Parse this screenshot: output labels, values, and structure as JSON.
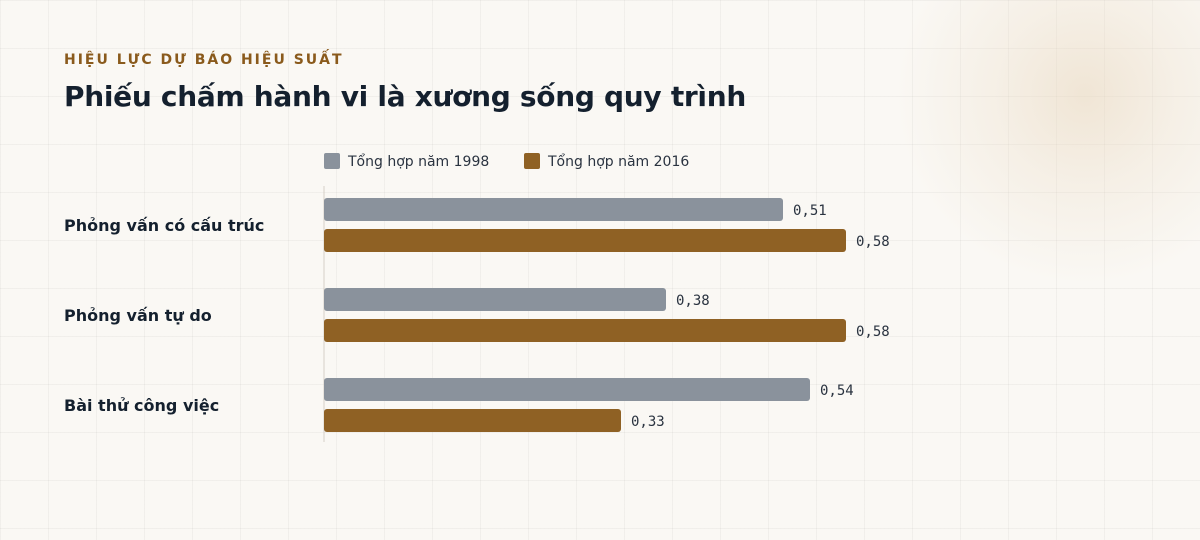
{
  "eyebrow": "HIỆU LỰC DỰ BÁO HIỆU SUẤT",
  "title": "Phiếu chấm hành vi là xương sống quy trình",
  "chart_data": {
    "type": "bar",
    "orientation": "horizontal",
    "title": "Phiếu chấm hành vi là xương sống quy trình",
    "subtitle": "HIỆU LỰC DỰ BÁO HIỆU SUẤT",
    "categories": [
      "Phỏng vấn có cấu trúc",
      "Phỏng vấn tự do",
      "Bài thử công việc"
    ],
    "series": [
      {
        "name": "Tổng hợp năm 1998",
        "color": "#8a929c",
        "values": [
          0.51,
          0.38,
          0.54
        ],
        "labels": [
          "0,51",
          "0,38",
          "0,54"
        ]
      },
      {
        "name": "Tổng hợp năm 2016",
        "color": "#8f6124",
        "values": [
          0.58,
          0.58,
          0.33
        ],
        "labels": [
          "0,58",
          "0,58",
          "0,33"
        ]
      }
    ],
    "xlim": [
      0,
      0.58
    ],
    "grid": false,
    "legend": "top"
  }
}
